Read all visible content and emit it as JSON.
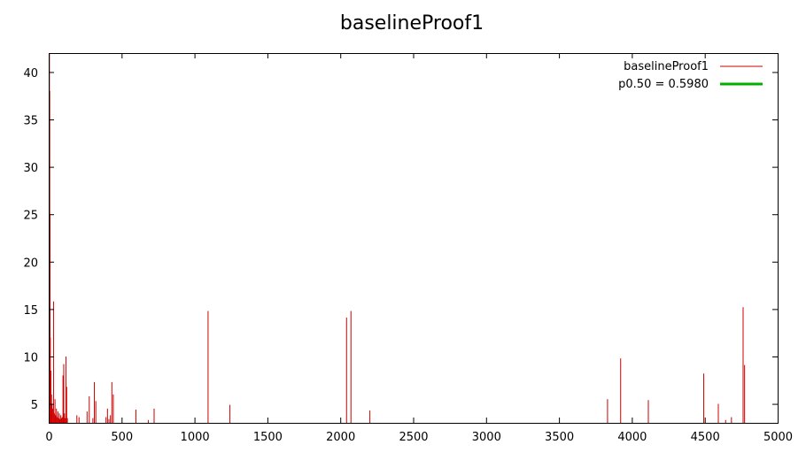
{
  "chart_data": {
    "type": "bar",
    "title": "baselineProof1",
    "xlabel": "",
    "ylabel": "",
    "xlim": [
      0,
      5000
    ],
    "ylim": [
      3,
      42
    ],
    "x_ticks": [
      "0",
      "500",
      "1000",
      "1500",
      "2000",
      "2500",
      "3000",
      "3500",
      "4000",
      "4500",
      "5000"
    ],
    "y_ticks": [
      "5",
      "10",
      "15",
      "20",
      "25",
      "30",
      "35",
      "40"
    ],
    "grid": false,
    "legend_position": "top-right",
    "series": [
      {
        "name": "baselineProof1",
        "color": "#cc0000",
        "style": "impulses",
        "points": [
          {
            "x": 2,
            "y": 42
          },
          {
            "x": 4,
            "y": 38
          },
          {
            "x": 6,
            "y": 25
          },
          {
            "x": 8,
            "y": 12
          },
          {
            "x": 12,
            "y": 8.5
          },
          {
            "x": 16,
            "y": 6
          },
          {
            "x": 20,
            "y": 5
          },
          {
            "x": 25,
            "y": 4.5
          },
          {
            "x": 30,
            "y": 15.8
          },
          {
            "x": 35,
            "y": 4
          },
          {
            "x": 40,
            "y": 5.5
          },
          {
            "x": 45,
            "y": 3.8
          },
          {
            "x": 50,
            "y": 4.5
          },
          {
            "x": 55,
            "y": 3.6
          },
          {
            "x": 60,
            "y": 4.2
          },
          {
            "x": 65,
            "y": 3.5
          },
          {
            "x": 70,
            "y": 4
          },
          {
            "x": 75,
            "y": 3.4
          },
          {
            "x": 80,
            "y": 3.8
          },
          {
            "x": 85,
            "y": 3.5
          },
          {
            "x": 90,
            "y": 3.6
          },
          {
            "x": 95,
            "y": 8
          },
          {
            "x": 100,
            "y": 9.2
          },
          {
            "x": 105,
            "y": 4
          },
          {
            "x": 110,
            "y": 3.5
          },
          {
            "x": 115,
            "y": 10
          },
          {
            "x": 120,
            "y": 6.8
          },
          {
            "x": 125,
            "y": 3.5
          },
          {
            "x": 190,
            "y": 3.8
          },
          {
            "x": 205,
            "y": 3.6
          },
          {
            "x": 260,
            "y": 4.2
          },
          {
            "x": 275,
            "y": 5.8
          },
          {
            "x": 300,
            "y": 3.5
          },
          {
            "x": 310,
            "y": 7.3
          },
          {
            "x": 320,
            "y": 5.3
          },
          {
            "x": 390,
            "y": 3.6
          },
          {
            "x": 400,
            "y": 4.5
          },
          {
            "x": 410,
            "y": 3.4
          },
          {
            "x": 420,
            "y": 3.8
          },
          {
            "x": 430,
            "y": 7.3
          },
          {
            "x": 440,
            "y": 6
          },
          {
            "x": 595,
            "y": 4.4
          },
          {
            "x": 680,
            "y": 3.3
          },
          {
            "x": 720,
            "y": 4.5
          },
          {
            "x": 1090,
            "y": 14.8
          },
          {
            "x": 1240,
            "y": 4.9
          },
          {
            "x": 2040,
            "y": 14.1
          },
          {
            "x": 2070,
            "y": 14.8
          },
          {
            "x": 2200,
            "y": 4.3
          },
          {
            "x": 3830,
            "y": 5.5
          },
          {
            "x": 3920,
            "y": 9.8
          },
          {
            "x": 4110,
            "y": 5.4
          },
          {
            "x": 4490,
            "y": 8.2
          },
          {
            "x": 4590,
            "y": 5
          },
          {
            "x": 4640,
            "y": 3.3
          },
          {
            "x": 4680,
            "y": 3.6
          },
          {
            "x": 4760,
            "y": 15.2
          },
          {
            "x": 4770,
            "y": 9.1
          }
        ]
      },
      {
        "name": "p0.50 = 0.5980",
        "color": "#00b000",
        "style": "line",
        "constant_y": 0.598
      }
    ]
  }
}
